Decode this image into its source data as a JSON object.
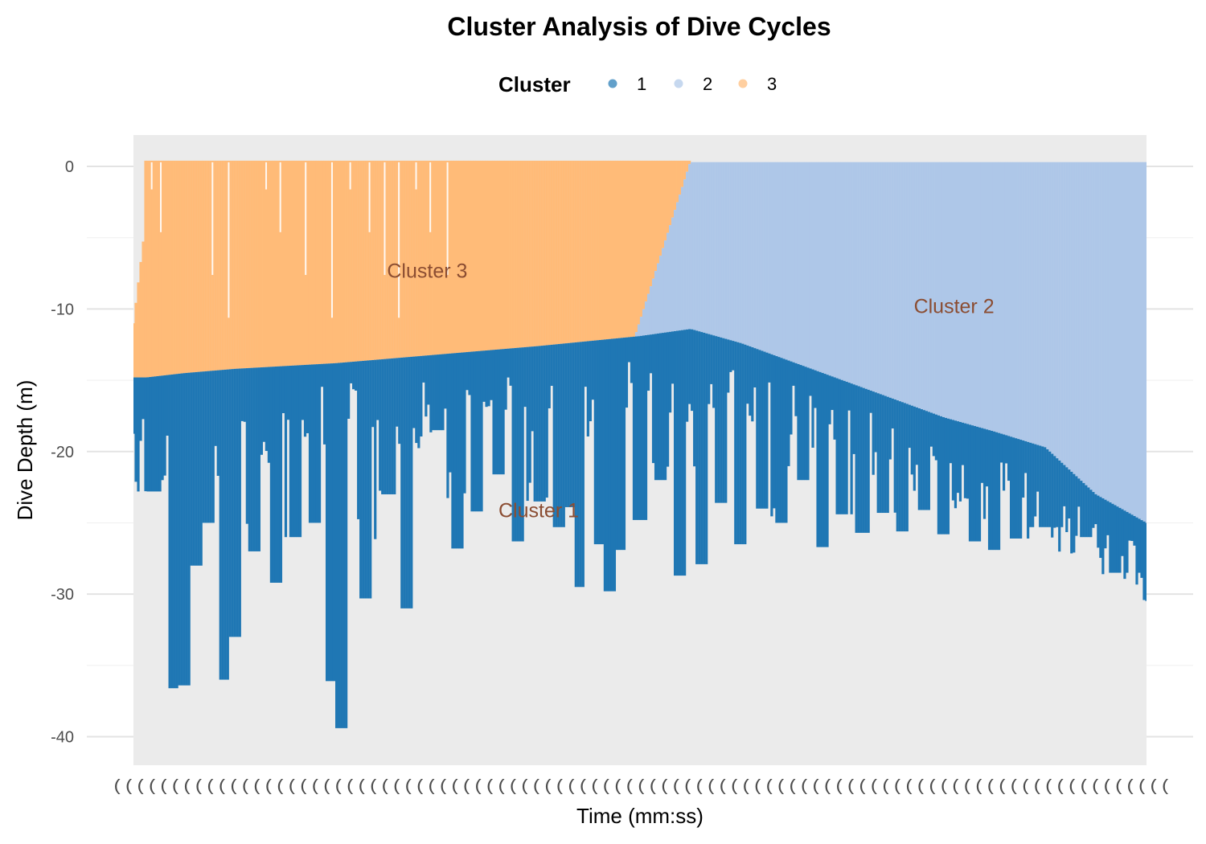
{
  "chart_data": {
    "type": "scatter",
    "title": "Cluster Analysis of Dive Cycles",
    "xlabel": "Time (mm:ss)",
    "ylabel": "Dive Depth (m)",
    "ylim": [
      -42,
      2.2
    ],
    "yticks": [
      0,
      -10,
      -20,
      -30,
      -40
    ],
    "ytick_labels": [
      "0",
      "-10",
      "-20",
      "-30",
      "-40"
    ],
    "xtick_labels_note": "(((((((((((((((((((((((((((((((((((((((((((((((((((((((((((((((((((((((((((((((((((((((((((",
    "grid": true,
    "legend": {
      "title": "Cluster",
      "position": "top",
      "entries": [
        {
          "label": "1",
          "color": "#1f77b4"
        },
        {
          "label": "2",
          "color": "#aec7e8"
        },
        {
          "label": "3",
          "color": "#ffbb78"
        }
      ]
    },
    "annotations": [
      {
        "text": "Cluster 3",
        "x_frac": 0.29,
        "y": -7.8
      },
      {
        "text": "Cluster 2",
        "x_frac": 0.81,
        "y": -10.3
      },
      {
        "text": "Cluster 1",
        "x_frac": 0.4,
        "y": -24.6
      }
    ],
    "series": [
      {
        "name": "1",
        "color": "#1f77b4",
        "description": "deep portion of dives (below the cluster boundary)",
        "boundary_depth": [
          {
            "x": 0.013,
            "y": -14.8
          },
          {
            "x": 0.05,
            "y": -14.5
          },
          {
            "x": 0.1,
            "y": -14.2
          },
          {
            "x": 0.2,
            "y": -13.8
          },
          {
            "x": 0.3,
            "y": -13.2
          },
          {
            "x": 0.4,
            "y": -12.6
          },
          {
            "x": 0.5,
            "y": -11.9
          },
          {
            "x": 0.55,
            "y": -11.4
          },
          {
            "x": 0.6,
            "y": -12.4
          },
          {
            "x": 0.7,
            "y": -15
          },
          {
            "x": 0.8,
            "y": -17.6
          },
          {
            "x": 0.85,
            "y": -18.6
          },
          {
            "x": 0.9,
            "y": -19.7
          },
          {
            "x": 0.95,
            "y": -23
          },
          {
            "x": 1,
            "y": -25
          }
        ],
        "dive_bottoms": [
          {
            "x": 0.02,
            "y": -22.8
          },
          {
            "x": 0.04,
            "y": -36.6
          },
          {
            "x": 0.05,
            "y": -36.4
          },
          {
            "x": 0.062,
            "y": -28
          },
          {
            "x": 0.075,
            "y": -25
          },
          {
            "x": 0.09,
            "y": -36
          },
          {
            "x": 0.1,
            "y": -33
          },
          {
            "x": 0.12,
            "y": -27
          },
          {
            "x": 0.14,
            "y": -29.2
          },
          {
            "x": 0.16,
            "y": -26
          },
          {
            "x": 0.18,
            "y": -25
          },
          {
            "x": 0.195,
            "y": -36.1
          },
          {
            "x": 0.205,
            "y": -39.4
          },
          {
            "x": 0.23,
            "y": -30.3
          },
          {
            "x": 0.25,
            "y": -23
          },
          {
            "x": 0.27,
            "y": -31
          },
          {
            "x": 0.3,
            "y": -18.5
          },
          {
            "x": 0.32,
            "y": -26.8
          },
          {
            "x": 0.34,
            "y": -24.2
          },
          {
            "x": 0.36,
            "y": -21.6
          },
          {
            "x": 0.38,
            "y": -26.3
          },
          {
            "x": 0.4,
            "y": -23.5
          },
          {
            "x": 0.42,
            "y": -25.3
          },
          {
            "x": 0.43,
            "y": -23.9
          },
          {
            "x": 0.44,
            "y": -29.5
          },
          {
            "x": 0.46,
            "y": -26.5
          },
          {
            "x": 0.47,
            "y": -29.8
          },
          {
            "x": 0.48,
            "y": -26.9
          },
          {
            "x": 0.5,
            "y": -24.8
          },
          {
            "x": 0.52,
            "y": -22
          },
          {
            "x": 0.54,
            "y": -28.7
          },
          {
            "x": 0.56,
            "y": -27.9
          },
          {
            "x": 0.58,
            "y": -23.6
          },
          {
            "x": 0.6,
            "y": -26.5
          },
          {
            "x": 0.62,
            "y": -24
          },
          {
            "x": 0.64,
            "y": -25
          },
          {
            "x": 0.66,
            "y": -22
          },
          {
            "x": 0.68,
            "y": -26.7
          },
          {
            "x": 0.7,
            "y": -24.4
          },
          {
            "x": 0.72,
            "y": -25.7
          },
          {
            "x": 0.74,
            "y": -24.3
          },
          {
            "x": 0.76,
            "y": -25.6
          },
          {
            "x": 0.78,
            "y": -24.1
          },
          {
            "x": 0.8,
            "y": -25.8
          },
          {
            "x": 0.83,
            "y": -26.3
          },
          {
            "x": 0.85,
            "y": -26.9
          },
          {
            "x": 0.87,
            "y": -26.1
          },
          {
            "x": 0.9,
            "y": -25.3
          },
          {
            "x": 0.94,
            "y": -26
          },
          {
            "x": 0.97,
            "y": -28.5
          }
        ]
      },
      {
        "name": "2",
        "color": "#aec7e8",
        "description": "shallow portion of dives in the later part of the record",
        "x_range_frac": [
          0.5,
          1
        ],
        "surface": 0.3,
        "intermediate_bottoms": [
          {
            "x": 0.88,
            "y": -22.2
          },
          {
            "x": 0.9,
            "y": -22.3
          },
          {
            "x": 0.93,
            "y": -20
          },
          {
            "x": 0.95,
            "y": -15.5
          },
          {
            "x": 0.97,
            "y": -11
          },
          {
            "x": 0.98,
            "y": -8
          },
          {
            "x": 0.99,
            "y": -5
          }
        ]
      },
      {
        "name": "3",
        "color": "#ffbb78",
        "description": "shallow portion of dives in the early part of the record",
        "x_range_frac": [
          0,
          0.55
        ],
        "surface": 0.4,
        "start_depth": -11
      }
    ]
  }
}
